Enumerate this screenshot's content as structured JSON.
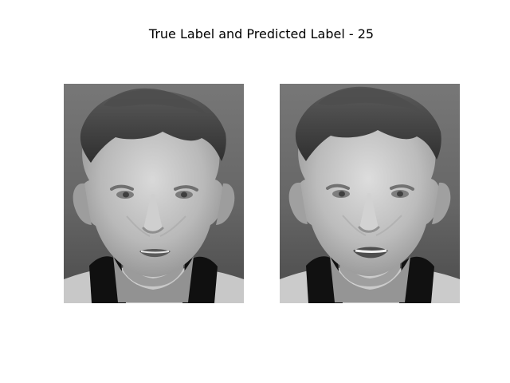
{
  "figure": {
    "title": "True Label and Predicted Label - 25"
  },
  "panels": [
    {
      "role": "true-label-image",
      "icon": "grayscale-face-photo"
    },
    {
      "role": "predicted-label-image",
      "icon": "grayscale-face-photo"
    }
  ]
}
